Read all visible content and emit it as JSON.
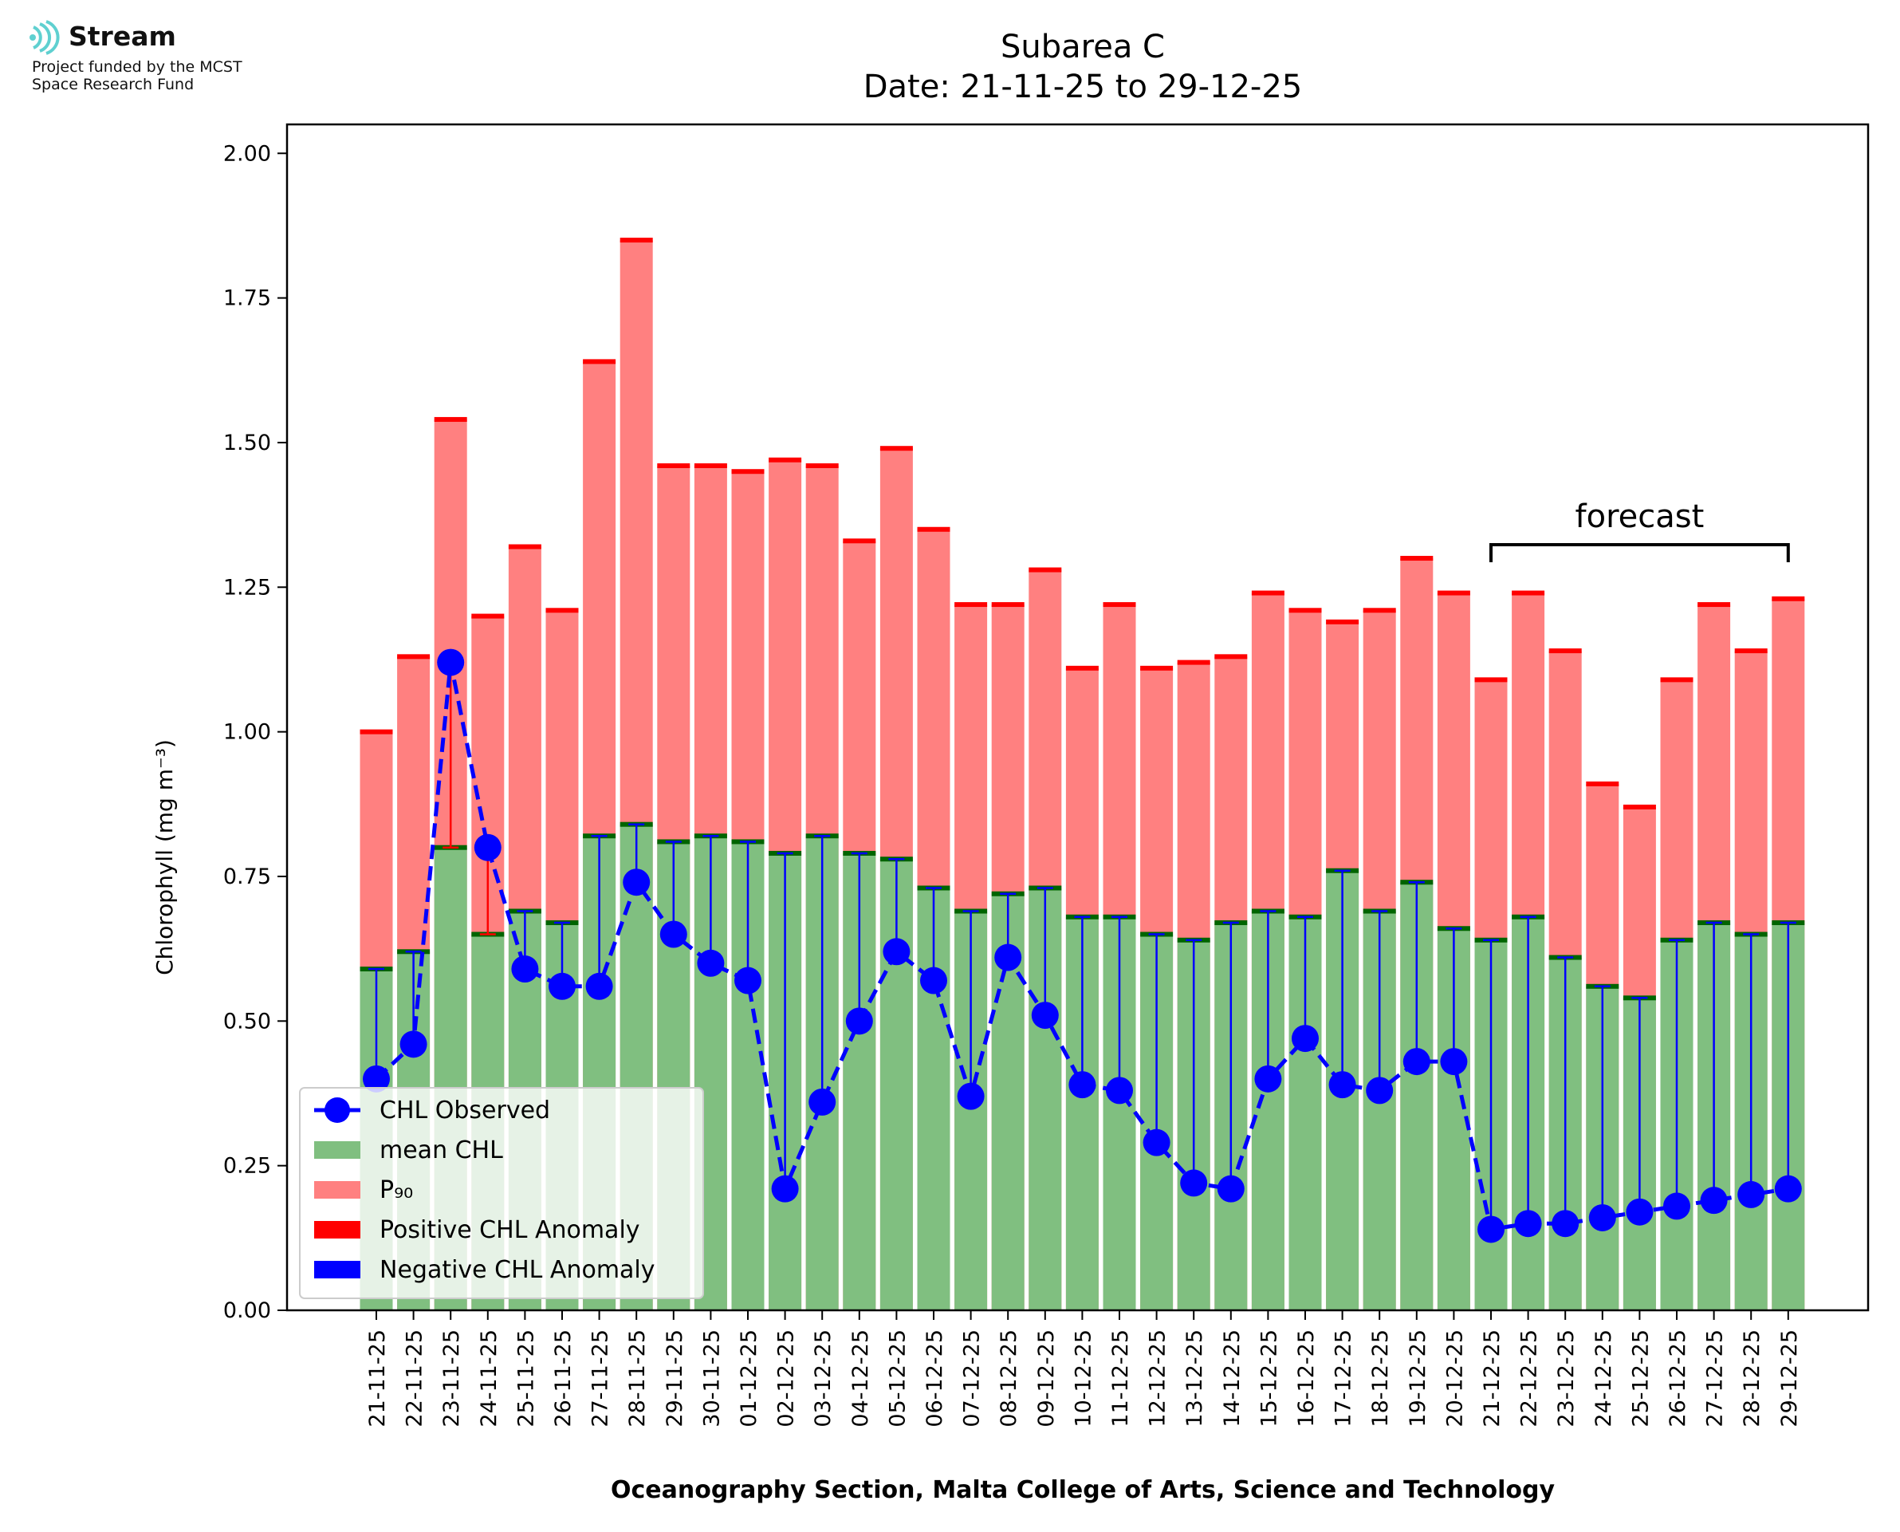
{
  "logo": {
    "name": "Stream",
    "funding_line1": "Project funded by the MCST",
    "funding_line2": "Space Research Fund",
    "icon": "stream-wave-icon"
  },
  "footer": "Oceanography Section, Malta College of Arts, Science and Technology",
  "forecast_label": "forecast",
  "chart_data": {
    "type": "bar",
    "title": "Subarea C",
    "subtitle": "Date: 21-11-25 to 29-12-25",
    "xlabel": "",
    "ylabel": "Chlorophyll (mg m⁻³)",
    "ylim": [
      0,
      2.05
    ],
    "yticks": [
      "0.00",
      "0.25",
      "0.50",
      "0.75",
      "1.00",
      "1.25",
      "1.50",
      "1.75",
      "2.00"
    ],
    "grid": false,
    "legend_position": "lower-left",
    "colors": {
      "mean": "#80bf80",
      "p90": "#ff8080",
      "positive_anomaly": "#ff0000",
      "negative_anomaly": "#0000ff",
      "observed": "#0000ff",
      "mean_cap": "#006400"
    },
    "categories": [
      "21-11-25",
      "22-11-25",
      "23-11-25",
      "24-11-25",
      "25-11-25",
      "26-11-25",
      "27-11-25",
      "28-11-25",
      "29-11-25",
      "30-11-25",
      "01-12-25",
      "02-12-25",
      "03-12-25",
      "04-12-25",
      "05-12-25",
      "06-12-25",
      "07-12-25",
      "08-12-25",
      "09-12-25",
      "10-12-25",
      "11-12-25",
      "12-12-25",
      "13-12-25",
      "14-12-25",
      "15-12-25",
      "16-12-25",
      "17-12-25",
      "18-12-25",
      "19-12-25",
      "20-12-25",
      "21-12-25",
      "22-12-25",
      "23-12-25",
      "24-12-25",
      "25-12-25",
      "26-12-25",
      "27-12-25",
      "28-12-25",
      "29-12-25"
    ],
    "series": [
      {
        "name": "CHL Observed",
        "values": [
          0.4,
          0.46,
          1.12,
          0.8,
          0.59,
          0.56,
          0.56,
          0.74,
          0.65,
          0.6,
          0.57,
          0.21,
          0.36,
          0.5,
          0.62,
          0.57,
          0.37,
          0.61,
          0.51,
          0.39,
          0.38,
          0.29,
          0.22,
          0.21,
          0.4,
          0.47,
          0.39,
          0.38,
          0.43,
          0.43,
          0.14,
          0.15,
          0.15,
          0.16,
          0.17,
          0.18,
          0.19,
          0.2,
          0.21
        ]
      },
      {
        "name": "mean CHL",
        "values": [
          0.59,
          0.62,
          0.8,
          0.65,
          0.69,
          0.67,
          0.82,
          0.84,
          0.81,
          0.82,
          0.81,
          0.79,
          0.82,
          0.79,
          0.78,
          0.73,
          0.69,
          0.72,
          0.73,
          0.68,
          0.68,
          0.65,
          0.64,
          0.67,
          0.69,
          0.68,
          0.76,
          0.69,
          0.74,
          0.66,
          0.64,
          0.68,
          0.61,
          0.56,
          0.54,
          0.64,
          0.67,
          0.65,
          0.67
        ]
      },
      {
        "name": "P₉₀",
        "values": [
          1.0,
          1.13,
          1.54,
          1.2,
          1.32,
          1.21,
          1.64,
          1.85,
          1.46,
          1.46,
          1.45,
          1.47,
          1.46,
          1.33,
          1.49,
          1.35,
          1.22,
          1.22,
          1.28,
          1.11,
          1.22,
          1.11,
          1.12,
          1.13,
          1.24,
          1.21,
          1.19,
          1.21,
          1.3,
          1.24,
          1.09,
          1.24,
          1.14,
          0.91,
          0.87,
          1.09,
          1.22,
          1.14,
          1.23
        ]
      }
    ],
    "legend": [
      "CHL Observed",
      "mean CHL",
      "P₉₀",
      "Positive CHL Anomaly",
      "Negative CHL Anomaly"
    ],
    "forecast_range": [
      "21-12-25",
      "29-12-25"
    ]
  }
}
